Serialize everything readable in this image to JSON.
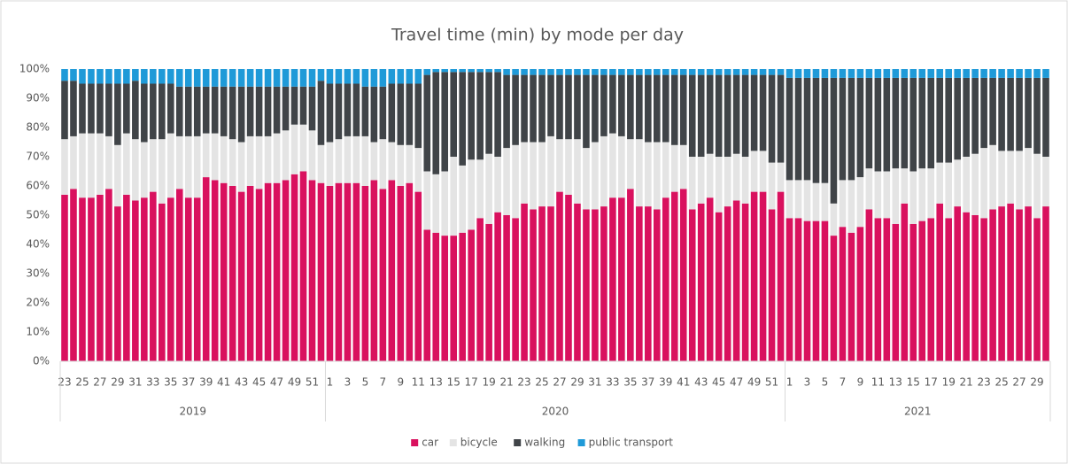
{
  "chart_data": {
    "type": "stacked_bar_100",
    "title": "Travel time (min) by mode per day",
    "categories": [
      "23",
      null,
      "25",
      null,
      "27",
      null,
      "29",
      null,
      "31",
      null,
      "33",
      null,
      "35",
      null,
      "37",
      null,
      "39",
      null,
      "41",
      null,
      "43",
      null,
      "45",
      null,
      "47",
      null,
      "49",
      null,
      "51",
      null,
      "1",
      null,
      "3",
      null,
      "5",
      null,
      "7",
      null,
      "9",
      null,
      "11",
      null,
      "13",
      null,
      "15",
      null,
      "17",
      null,
      "19",
      null,
      "21",
      null,
      "23",
      null,
      "25",
      null,
      "27",
      null,
      "29",
      null,
      "31",
      null,
      "33",
      null,
      "35",
      null,
      "37",
      null,
      "39",
      null,
      "41",
      null,
      "43",
      null,
      "45",
      null,
      "47",
      null,
      "49",
      null,
      "51",
      null,
      "1",
      null,
      "3",
      null,
      "5",
      null,
      "7",
      null,
      "9",
      null,
      "11",
      null,
      "13",
      null,
      "15",
      null,
      "17",
      null,
      "19",
      null,
      "21",
      null,
      "23",
      null,
      "25",
      null,
      "27",
      null,
      "29",
      null
    ],
    "x_groups": [
      {
        "label": "2019",
        "size": 30
      },
      {
        "label": "2020",
        "size": 52
      },
      {
        "label": "2021",
        "size": 30
      }
    ],
    "series": [
      {
        "name": "car",
        "color": "#d9115e",
        "values": [
          57,
          59,
          56,
          56,
          57,
          59,
          53,
          57,
          55,
          56,
          58,
          54,
          56,
          59,
          56,
          56,
          63,
          62,
          61,
          60,
          58,
          60,
          59,
          61,
          61,
          62,
          64,
          65,
          62,
          61,
          60,
          61,
          61,
          61,
          60,
          62,
          59,
          62,
          60,
          61,
          58,
          45,
          44,
          43,
          43,
          44,
          45,
          49,
          47,
          51,
          50,
          49,
          54,
          52,
          53,
          53,
          58,
          57,
          54,
          52,
          52,
          53,
          56,
          56,
          59,
          53,
          53,
          52,
          56,
          58,
          59,
          52,
          54,
          56,
          51,
          53,
          55,
          54,
          58,
          58,
          52,
          58,
          49,
          49,
          48,
          48,
          48,
          43,
          46,
          44,
          46,
          52,
          49,
          49,
          47,
          54,
          47,
          48,
          49,
          54,
          49,
          53,
          51,
          50,
          49,
          52,
          53,
          54,
          52,
          53,
          49,
          53
        ]
      },
      {
        "name": "bicycle",
        "color": "#e4e4e4",
        "values": [
          19,
          18,
          22,
          22,
          21,
          18,
          21,
          21,
          21,
          19,
          18,
          22,
          22,
          18,
          21,
          21,
          15,
          16,
          16,
          16,
          17,
          17,
          18,
          16,
          17,
          17,
          17,
          16,
          17,
          13,
          15,
          15,
          16,
          16,
          17,
          13,
          17,
          13,
          14,
          13,
          15,
          20,
          20,
          22,
          27,
          23,
          24,
          20,
          24,
          19,
          23,
          25,
          21,
          23,
          22,
          24,
          18,
          19,
          22,
          21,
          23,
          24,
          22,
          21,
          17,
          23,
          22,
          23,
          19,
          16,
          15,
          18,
          16,
          15,
          19,
          17,
          16,
          16,
          14,
          14,
          16,
          10,
          13,
          13,
          14,
          13,
          13,
          11,
          16,
          18,
          17,
          14,
          16,
          16,
          19,
          12,
          18,
          18,
          17,
          14,
          19,
          16,
          19,
          21,
          24,
          22,
          19,
          18,
          20,
          20,
          22,
          17
        ]
      },
      {
        "name": "walking",
        "color": "#404448",
        "values": [
          20,
          19,
          17,
          17,
          17,
          18,
          21,
          17,
          20,
          20,
          19,
          19,
          17,
          17,
          17,
          17,
          16,
          16,
          17,
          18,
          19,
          17,
          17,
          17,
          16,
          15,
          13,
          13,
          15,
          22,
          20,
          19,
          18,
          18,
          17,
          19,
          18,
          20,
          21,
          21,
          22,
          33,
          35,
          34,
          29,
          32,
          30,
          30,
          28,
          29,
          25,
          24,
          23,
          23,
          23,
          21,
          22,
          22,
          22,
          25,
          23,
          21,
          20,
          21,
          22,
          22,
          23,
          23,
          23,
          24,
          24,
          28,
          28,
          27,
          28,
          28,
          27,
          28,
          26,
          26,
          30,
          30,
          35,
          35,
          35,
          36,
          36,
          43,
          35,
          35,
          34,
          31,
          32,
          32,
          31,
          31,
          32,
          31,
          31,
          29,
          29,
          28,
          27,
          26,
          24,
          23,
          25,
          25,
          25,
          24,
          26,
          27
        ]
      },
      {
        "name": "public transport",
        "color": "#1f9ad8",
        "values": [
          4,
          4,
          5,
          5,
          5,
          5,
          5,
          5,
          4,
          5,
          5,
          5,
          5,
          6,
          6,
          6,
          6,
          6,
          6,
          6,
          6,
          6,
          6,
          6,
          6,
          6,
          6,
          6,
          6,
          4,
          5,
          5,
          5,
          5,
          6,
          6,
          6,
          5,
          5,
          5,
          5,
          2,
          1,
          1,
          1,
          1,
          1,
          1,
          1,
          1,
          2,
          2,
          2,
          2,
          2,
          2,
          2,
          2,
          2,
          2,
          2,
          2,
          2,
          2,
          2,
          2,
          2,
          2,
          2,
          2,
          2,
          2,
          2,
          2,
          2,
          2,
          2,
          2,
          2,
          2,
          2,
          2,
          3,
          3,
          3,
          3,
          3,
          3,
          3,
          3,
          3,
          3,
          3,
          3,
          3,
          3,
          3,
          3,
          3,
          3,
          3,
          3,
          3,
          3,
          3,
          3,
          3,
          3,
          3,
          3,
          3,
          3
        ]
      }
    ],
    "ylim": [
      0,
      100
    ],
    "yticks": [
      {
        "value": 0,
        "label": "0%"
      },
      {
        "value": 10,
        "label": "10%"
      },
      {
        "value": 20,
        "label": "20%"
      },
      {
        "value": 30,
        "label": "30%"
      },
      {
        "value": 40,
        "label": "40%"
      },
      {
        "value": 50,
        "label": "50%"
      },
      {
        "value": 60,
        "label": "60%"
      },
      {
        "value": 70,
        "label": "70%"
      },
      {
        "value": 80,
        "label": "80%"
      },
      {
        "value": 90,
        "label": "90%"
      },
      {
        "value": 100,
        "label": "100%"
      }
    ],
    "grid": false,
    "legend": "bottom"
  }
}
